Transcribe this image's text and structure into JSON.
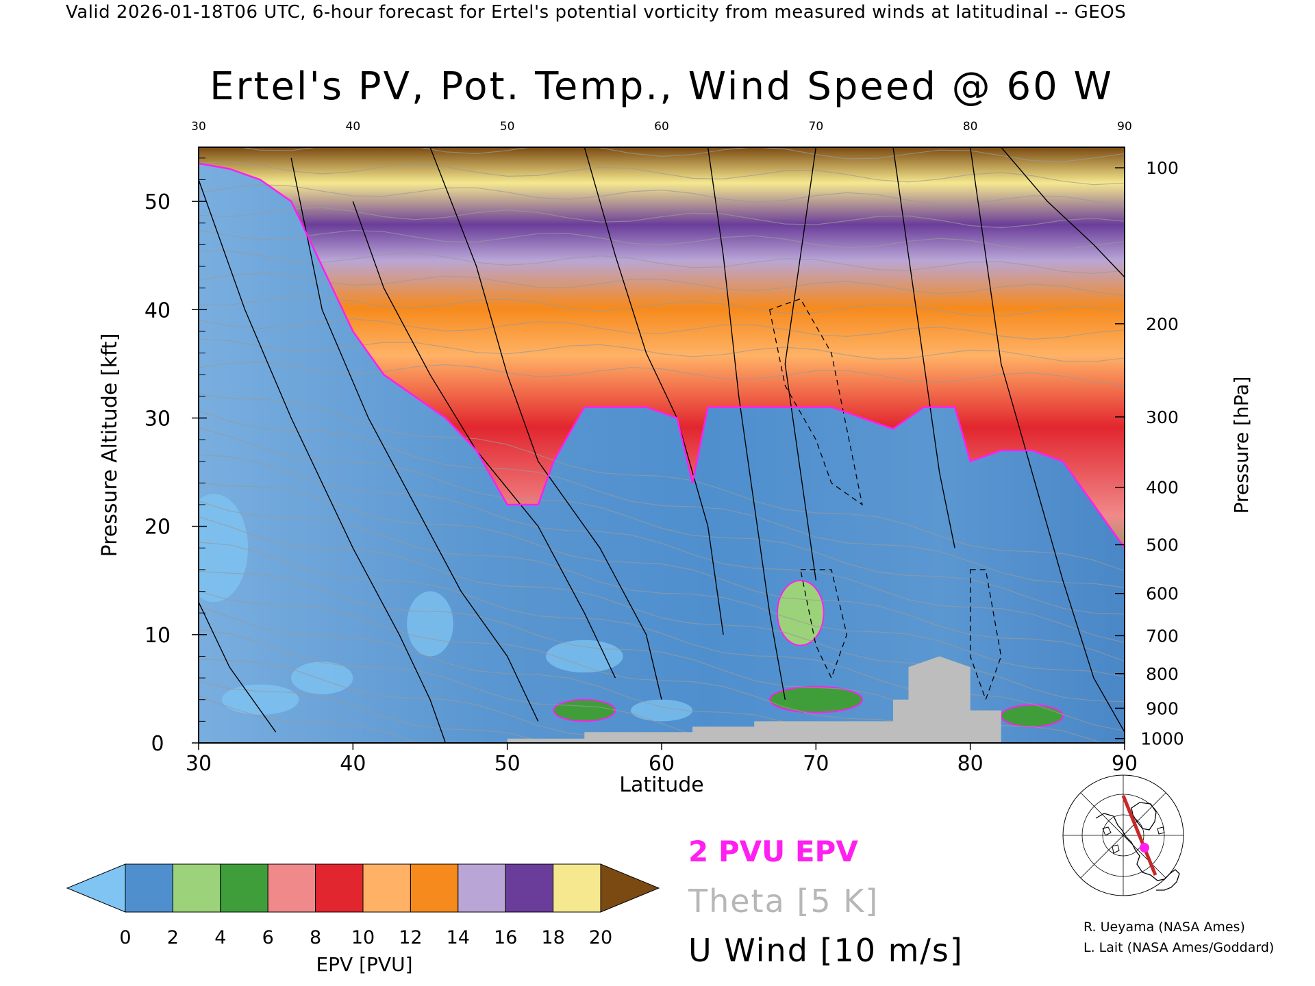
{
  "header": {
    "valid_line": "Valid 2026-01-18T06 UTC, 6-hour forecast for Ertel's potential vorticity from measured winds at latitudinal -- GEOS"
  },
  "chart_data": {
    "type": "heatmap",
    "title": "Ertel's PV, Pot. Temp., Wind Speed @ 60 W",
    "xlabel": "Latitude",
    "ylabel_left": "Pressure Altitude [kft]",
    "ylabel_right": "Pressure [hPa]",
    "xlim": [
      30,
      90
    ],
    "ylim": [
      0,
      55
    ],
    "x_ticks": [
      "30",
      "40",
      "50",
      "60",
      "70",
      "80",
      "90"
    ],
    "x_ticks_top": [
      "30",
      "40",
      "50",
      "60",
      "70",
      "80",
      "90"
    ],
    "y_ticks": [
      "0",
      "10",
      "20",
      "30",
      "40",
      "50"
    ],
    "pressure_ticks": [
      {
        "label": "100",
        "kft": 53.1
      },
      {
        "label": "200",
        "kft": 38.7
      },
      {
        "label": "300",
        "kft": 30.1
      },
      {
        "label": "400",
        "kft": 23.6
      },
      {
        "label": "500",
        "kft": 18.3
      },
      {
        "label": "600",
        "kft": 13.8
      },
      {
        "label": "700",
        "kft": 9.9
      },
      {
        "label": "800",
        "kft": 6.4
      },
      {
        "label": "900",
        "kft": 3.2
      },
      {
        "label": "1000",
        "kft": 0.4
      }
    ],
    "tropopause_2pvu_kft": [
      [
        30,
        53.5
      ],
      [
        32,
        53
      ],
      [
        34,
        52
      ],
      [
        36,
        50
      ],
      [
        38,
        44
      ],
      [
        40,
        38
      ],
      [
        42,
        34
      ],
      [
        44,
        32
      ],
      [
        46,
        30
      ],
      [
        48,
        27
      ],
      [
        50,
        22
      ],
      [
        52,
        22
      ],
      [
        53,
        26
      ],
      [
        55,
        31
      ],
      [
        57,
        31
      ],
      [
        59,
        31
      ],
      [
        61,
        30
      ],
      [
        62,
        24
      ],
      [
        63,
        31
      ],
      [
        65,
        31
      ],
      [
        67,
        31
      ],
      [
        69,
        31
      ],
      [
        71,
        31
      ],
      [
        73,
        30
      ],
      [
        75,
        29
      ],
      [
        77,
        31
      ],
      [
        79,
        31
      ],
      [
        80,
        26
      ],
      [
        82,
        27
      ],
      [
        84,
        27
      ],
      [
        86,
        26
      ],
      [
        88,
        22
      ],
      [
        90,
        18
      ]
    ],
    "colorbar": {
      "label": "EPV [PVU]",
      "tick_labels": [
        "0",
        "2",
        "4",
        "6",
        "8",
        "10",
        "12",
        "14",
        "16",
        "18",
        "20"
      ],
      "bins": [
        {
          "from": 0,
          "to": 2,
          "color": "#4f8fce"
        },
        {
          "from": 2,
          "to": 4,
          "color": "#9bd27a"
        },
        {
          "from": 4,
          "to": 6,
          "color": "#3f9e3a"
        },
        {
          "from": 6,
          "to": 8,
          "color": "#f08a8a"
        },
        {
          "from": 8,
          "to": 10,
          "color": "#e2262f"
        },
        {
          "from": 10,
          "to": 12,
          "color": "#ffb266"
        },
        {
          "from": 12,
          "to": 14,
          "color": "#f68a1c"
        },
        {
          "from": 14,
          "to": 16,
          "color": "#b9a6d6"
        },
        {
          "from": 16,
          "to": 18,
          "color": "#6a3d9a"
        },
        {
          "from": 18,
          "to": 20,
          "color": "#f5e88f"
        }
      ],
      "under_color": "#7fc4f2",
      "over_color": "#7b4a12"
    },
    "legend": [
      {
        "label": "2 PVU EPV",
        "color": "#ff1ff0"
      },
      {
        "label": "Theta [5 K]",
        "color": "#b7b7b7"
      },
      {
        "label": "U Wind [10 m/s]",
        "color": "#000000"
      }
    ],
    "legend_placement": "bottom-center"
  },
  "map_inset": {
    "name": "section-location-map"
  },
  "credits": {
    "line1": "R. Ueyama (NASA Ames)",
    "line2": "L. Lait (NASA Ames/Goddard)"
  }
}
